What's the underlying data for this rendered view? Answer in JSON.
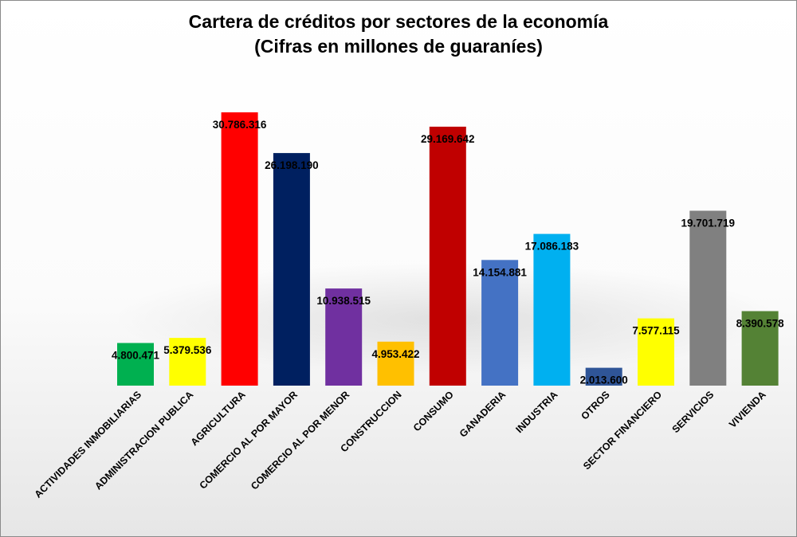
{
  "chart_data": {
    "type": "bar",
    "title": "Cartera de créditos por sectores de la economía",
    "subtitle": "(Cifras en millones de guaraníes)",
    "categories": [
      "ACTIVIDADES INMOBILIARIAS",
      "ADMINISTRACION PUBLICA",
      "AGRICULTURA",
      "COMERCIO AL POR MAYOR",
      "COMERCIO AL POR MENOR",
      "CONSTRUCCION",
      "CONSUMO",
      "GANADERIA",
      "INDUSTRIA",
      "OTROS",
      "SECTOR FINANCIERO",
      "SERVICIOS",
      "VIVIENDA"
    ],
    "values": [
      4800471,
      5379536,
      30786316,
      26198190,
      10938515,
      4953422,
      29169642,
      14154881,
      17086183,
      2013600,
      7577115,
      19701719,
      8390578
    ],
    "value_labels": [
      "4.800.471",
      "5.379.536",
      "30.786.316",
      "26.198.190",
      "10.938.515",
      "4.953.422",
      "29.169.642",
      "14.154.881",
      "17.086.183",
      "2.013.600",
      "7.577.115",
      "19.701.719",
      "8.390.578"
    ],
    "colors": [
      "#00b050",
      "#ffff00",
      "#ff0000",
      "#002060",
      "#7030a0",
      "#ffc000",
      "#c00000",
      "#4472c4",
      "#00b0f0",
      "#2f5597",
      "#ffff00",
      "#808080",
      "#548235"
    ],
    "xlabel": "",
    "ylabel": "",
    "ylim": [
      0,
      31000000
    ],
    "grid": false,
    "legend": "none"
  }
}
